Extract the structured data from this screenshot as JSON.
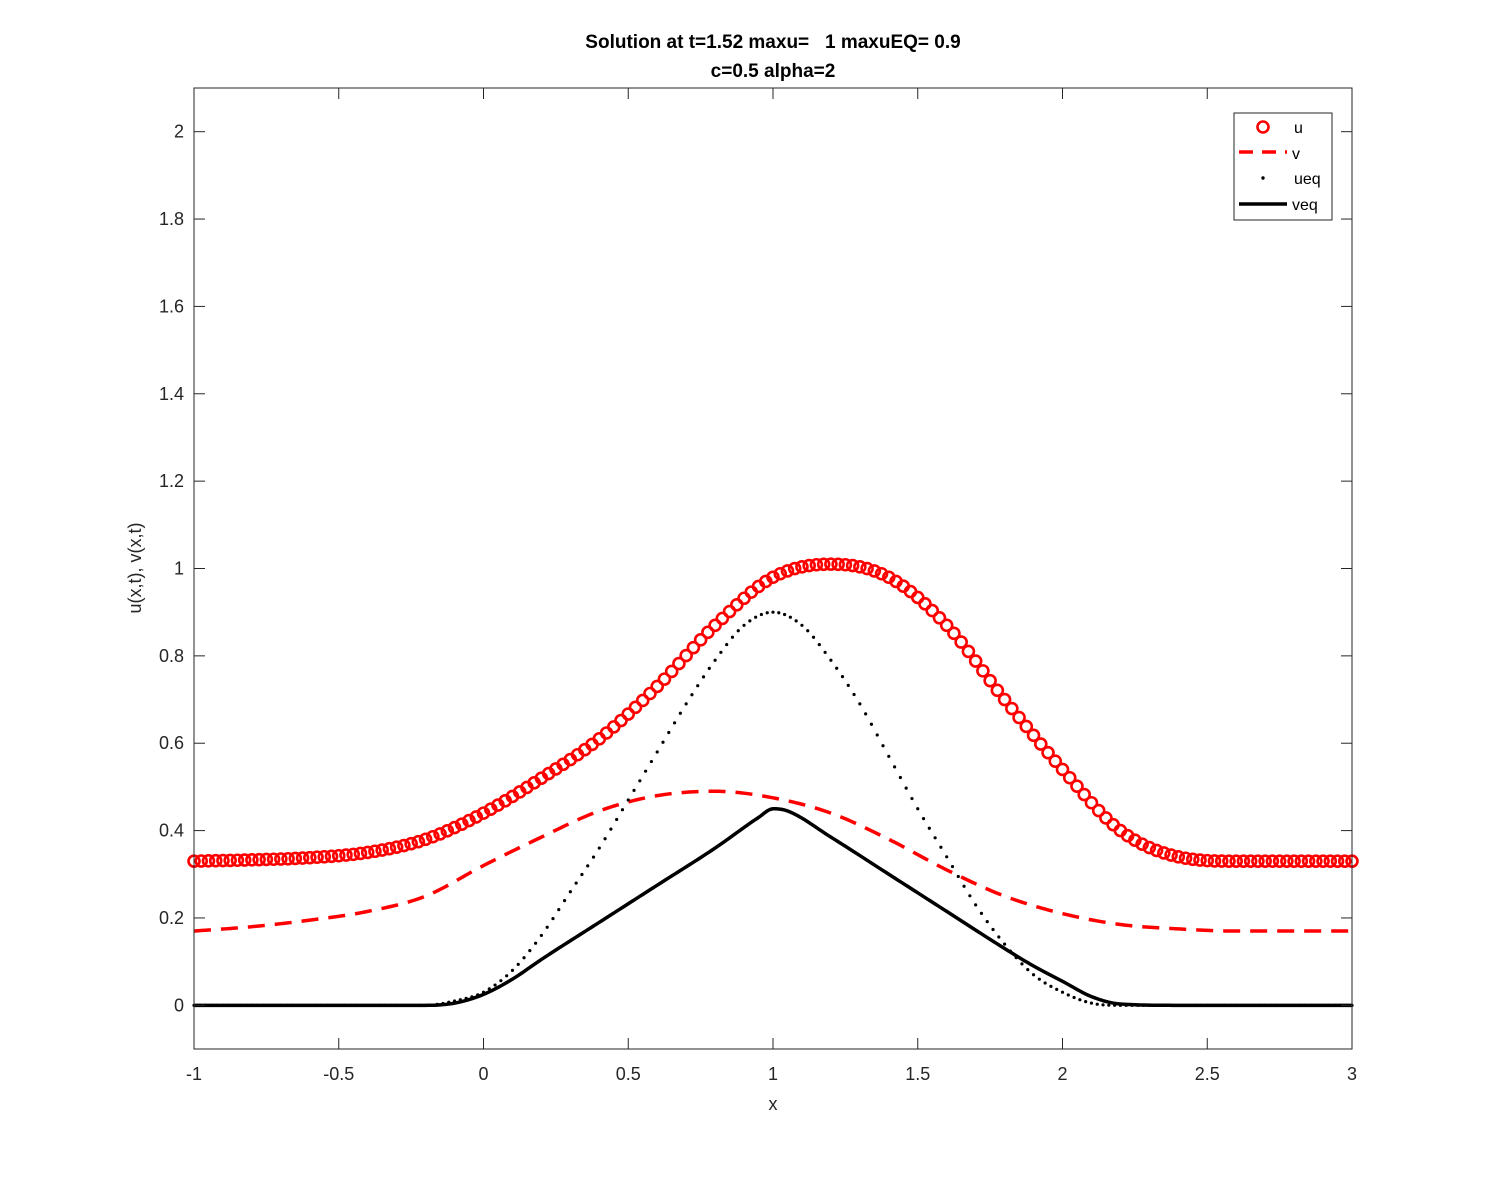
{
  "chart_data": {
    "type": "line",
    "title_line1": "Solution at t=1.52 maxu=   1 maxuEQ= 0.9",
    "title_line2": "c=0.5 alpha=2",
    "xlabel": "x",
    "ylabel": "u(x,t), v(x,t)",
    "xlim": [
      -1,
      3
    ],
    "ylim": [
      -0.1,
      2.1
    ],
    "xticks": [
      -1,
      -0.5,
      0,
      0.5,
      1,
      1.5,
      2,
      2.5,
      3
    ],
    "xtick_labels": [
      "-1",
      "-0.5",
      "0",
      "0.5",
      "1",
      "1.5",
      "2",
      "2.5",
      "3"
    ],
    "yticks": [
      0,
      0.2,
      0.4,
      0.6,
      0.8,
      1,
      1.2,
      1.4,
      1.6,
      1.8,
      2
    ],
    "ytick_labels": [
      "0",
      "0.2",
      "0.4",
      "0.6",
      "0.8",
      "1",
      "1.2",
      "1.4",
      "1.6",
      "1.8",
      "2"
    ],
    "legend_position": "top-right",
    "series": [
      {
        "name": "u",
        "style": "circle-markers",
        "color": "#ff0000",
        "x": [
          -1.0,
          -0.8,
          -0.6,
          -0.4,
          -0.2,
          0.0,
          0.2,
          0.4,
          0.6,
          0.8,
          1.0,
          1.2,
          1.4,
          1.6,
          1.8,
          2.0,
          2.2,
          2.4,
          2.6,
          2.8,
          3.0
        ],
        "y": [
          0.33,
          0.333,
          0.338,
          0.35,
          0.38,
          0.44,
          0.52,
          0.61,
          0.73,
          0.87,
          0.98,
          1.01,
          0.98,
          0.87,
          0.7,
          0.54,
          0.4,
          0.34,
          0.33,
          0.33,
          0.33
        ]
      },
      {
        "name": "v",
        "style": "dashed",
        "color": "#ff0000",
        "x": [
          -1.0,
          -0.8,
          -0.6,
          -0.4,
          -0.2,
          0.0,
          0.2,
          0.4,
          0.6,
          0.8,
          1.0,
          1.2,
          1.4,
          1.6,
          1.8,
          2.0,
          2.2,
          2.4,
          2.6,
          2.8,
          3.0
        ],
        "y": [
          0.17,
          0.18,
          0.195,
          0.215,
          0.25,
          0.32,
          0.385,
          0.445,
          0.48,
          0.49,
          0.475,
          0.44,
          0.38,
          0.31,
          0.25,
          0.21,
          0.185,
          0.175,
          0.17,
          0.17,
          0.17
        ]
      },
      {
        "name": "ueq",
        "style": "dots",
        "color": "#000000",
        "x": [
          -1.0,
          -0.8,
          -0.6,
          -0.4,
          -0.2,
          -0.1,
          0.0,
          0.1,
          0.2,
          0.3,
          0.4,
          0.5,
          0.6,
          0.7,
          0.8,
          0.9,
          1.0,
          1.1,
          1.2,
          1.3,
          1.4,
          1.5,
          1.6,
          1.7,
          1.8,
          1.9,
          2.0,
          2.1,
          2.2,
          2.4,
          2.6,
          2.8,
          3.0
        ],
        "y": [
          0.0,
          0.0,
          0.0,
          0.0,
          0.0,
          0.01,
          0.03,
          0.08,
          0.16,
          0.26,
          0.36,
          0.47,
          0.58,
          0.69,
          0.79,
          0.87,
          0.9,
          0.87,
          0.79,
          0.69,
          0.57,
          0.45,
          0.34,
          0.23,
          0.14,
          0.07,
          0.03,
          0.005,
          0.0,
          0.0,
          0.0,
          0.0,
          0.0
        ]
      },
      {
        "name": "veq",
        "style": "solid-thick",
        "color": "#000000",
        "x": [
          -1.0,
          -0.8,
          -0.6,
          -0.4,
          -0.2,
          -0.1,
          0.0,
          0.1,
          0.2,
          0.4,
          0.6,
          0.8,
          0.95,
          1.0,
          1.05,
          1.2,
          1.4,
          1.6,
          1.8,
          1.9,
          2.0,
          2.1,
          2.2,
          2.4,
          2.6,
          2.8,
          3.0
        ],
        "y": [
          0.0,
          0.0,
          0.0,
          0.0,
          0.0,
          0.005,
          0.025,
          0.06,
          0.105,
          0.19,
          0.275,
          0.36,
          0.43,
          0.45,
          0.445,
          0.385,
          0.3,
          0.215,
          0.13,
          0.09,
          0.055,
          0.02,
          0.003,
          0.0,
          0.0,
          0.0,
          0.0
        ]
      }
    ]
  }
}
